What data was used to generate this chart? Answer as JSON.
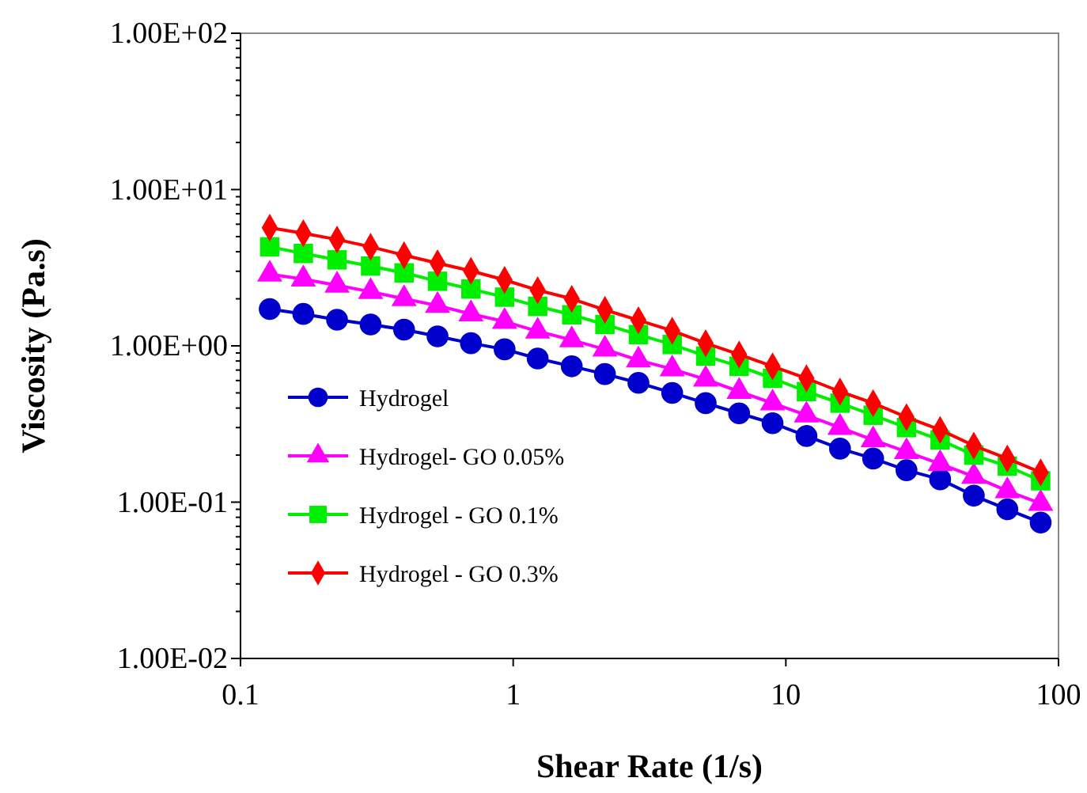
{
  "chart_data": {
    "type": "line",
    "xlabel": "Shear Rate (1/s)",
    "ylabel": "Viscosity  (Pa.s)",
    "log": "xy",
    "grid": false,
    "legend": "bottom left",
    "line_style": "solid",
    "x": [
      0.128,
      0.17,
      0.226,
      0.3,
      0.398,
      0.528,
      0.7,
      0.93,
      1.23,
      1.64,
      2.17,
      2.88,
      3.83,
      5.08,
      6.74,
      8.94,
      11.9,
      15.8,
      20.9,
      27.7,
      36.8,
      48.9,
      64.9,
      86
    ],
    "xlim": [
      0.1,
      100
    ],
    "xticks": [
      0.1,
      1,
      10,
      100
    ],
    "ylim": [
      0.01,
      100
    ],
    "yticks": [
      {
        "value": 0.01,
        "label": "1.00E-02"
      },
      {
        "value": 0.02,
        "label": null
      },
      {
        "value": 0.03,
        "label": null
      },
      {
        "value": 0.04,
        "label": null
      },
      {
        "value": 0.05,
        "label": null
      },
      {
        "value": 0.06,
        "label": null
      },
      {
        "value": 0.07,
        "label": null
      },
      {
        "value": 0.08,
        "label": null
      },
      {
        "value": 0.09,
        "label": null
      },
      {
        "value": 0.1,
        "label": "1.00E-01"
      },
      {
        "value": 0.2,
        "label": null
      },
      {
        "value": 0.3,
        "label": null
      },
      {
        "value": 0.4,
        "label": null
      },
      {
        "value": 0.5,
        "label": null
      },
      {
        "value": 0.6,
        "label": null
      },
      {
        "value": 0.7,
        "label": null
      },
      {
        "value": 0.8,
        "label": null
      },
      {
        "value": 0.9,
        "label": null
      },
      {
        "value": 1,
        "label": "1.00E+00"
      },
      {
        "value": 2,
        "label": null
      },
      {
        "value": 3,
        "label": null
      },
      {
        "value": 4,
        "label": null
      },
      {
        "value": 5,
        "label": null
      },
      {
        "value": 6,
        "label": null
      },
      {
        "value": 7,
        "label": null
      },
      {
        "value": 8,
        "label": null
      },
      {
        "value": 9,
        "label": null
      },
      {
        "value": 10,
        "label": "1.00E+01"
      },
      {
        "value": 20,
        "label": null
      },
      {
        "value": 30,
        "label": null
      },
      {
        "value": 40,
        "label": null
      },
      {
        "value": 50,
        "label": null
      },
      {
        "value": 60,
        "label": null
      },
      {
        "value": 70,
        "label": null
      },
      {
        "value": 80,
        "label": null
      },
      {
        "value": 90,
        "label": null
      },
      {
        "value": 100,
        "label": "1.00E+02"
      }
    ],
    "series": [
      {
        "name": "Hydrogel",
        "color": "#0000cc",
        "marker": "circle",
        "values": [
          1.72,
          1.6,
          1.47,
          1.37,
          1.27,
          1.15,
          1.04,
          0.95,
          0.83,
          0.74,
          0.66,
          0.58,
          0.5,
          0.43,
          0.37,
          0.32,
          0.265,
          0.22,
          0.19,
          0.16,
          0.14,
          0.11,
          0.09,
          0.074
        ]
      },
      {
        "name": "Hydrogel- GO 0.05%",
        "color": "#ff00ff",
        "marker": "triangle",
        "values": [
          2.87,
          2.67,
          2.44,
          2.22,
          2.0,
          1.81,
          1.6,
          1.43,
          1.24,
          1.09,
          0.95,
          0.81,
          0.71,
          0.61,
          0.51,
          0.43,
          0.36,
          0.3,
          0.25,
          0.21,
          0.176,
          0.146,
          0.118,
          0.098
        ]
      },
      {
        "name": "Hydrogel - GO 0.1%",
        "color": "#00ee00",
        "marker": "square",
        "values": [
          4.3,
          3.9,
          3.55,
          3.24,
          2.93,
          2.59,
          2.31,
          2.05,
          1.79,
          1.58,
          1.37,
          1.18,
          1.02,
          0.86,
          0.74,
          0.62,
          0.51,
          0.43,
          0.36,
          0.3,
          0.25,
          0.2,
          0.17,
          0.137
        ]
      },
      {
        "name": "Hydrogel - GO 0.3%",
        "color": "#ff0000",
        "marker": "diamond",
        "values": [
          5.7,
          5.25,
          4.79,
          4.3,
          3.8,
          3.38,
          3.02,
          2.64,
          2.27,
          2.0,
          1.7,
          1.46,
          1.25,
          1.04,
          0.88,
          0.74,
          0.62,
          0.51,
          0.43,
          0.35,
          0.29,
          0.23,
          0.19,
          0.155
        ]
      }
    ]
  }
}
